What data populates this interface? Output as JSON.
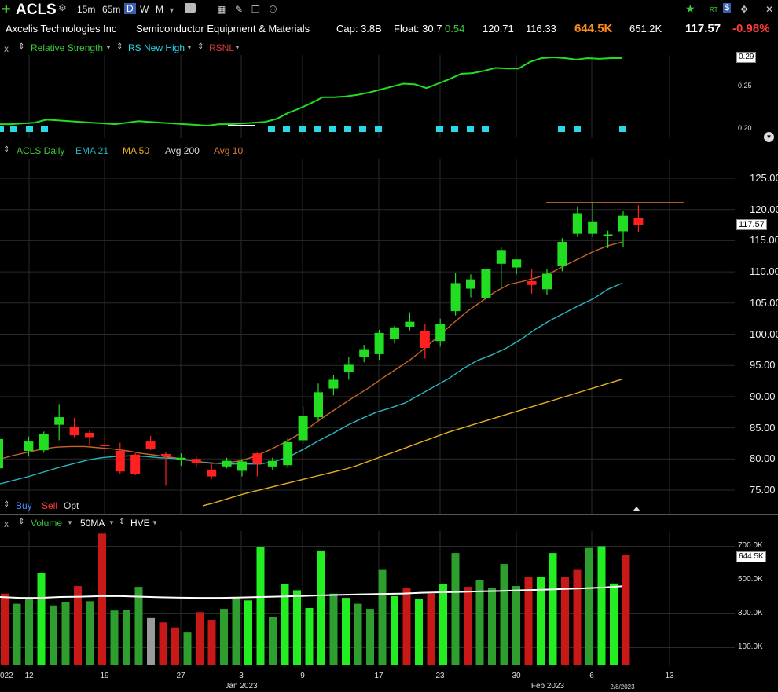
{
  "toolbar": {
    "add_icon": "plus-icon",
    "symbol": "ACLS",
    "intervals": [
      "15m",
      "65m",
      "D",
      "W",
      "M"
    ],
    "active_interval": "D",
    "right_labels": {
      "rt": "RT"
    }
  },
  "info": {
    "company": "Axcelis Technologies Inc",
    "industry": "Semiconductor Equipment & Materials",
    "cap": "Cap: 3.8B",
    "float": "Float: 30.7",
    "eps": "0.54",
    "high": "120.71",
    "low": "116.33",
    "volume": "644.5K",
    "avg_volume": "651.2K",
    "last": "117.57",
    "change": "-0.98%"
  },
  "rs_panel": {
    "close": "x",
    "legend": [
      "Relative Strength",
      "RS New High",
      "RSNL"
    ],
    "axis": [
      "0.29",
      "0.25",
      "0.20"
    ],
    "current": "0.29"
  },
  "price_panel": {
    "legend": [
      "ACLS Daily",
      "EMA 21",
      "MA 50",
      "Avg 200",
      "Avg 10"
    ],
    "axis": [
      "125.00",
      "120.00",
      "115.00",
      "110.00",
      "105.00",
      "100.00",
      "95.00",
      "90.00",
      "85.00",
      "80.00",
      "75.00"
    ],
    "last_badge": "117.57",
    "order_buttons": [
      "Buy",
      "Sell",
      "Opt"
    ]
  },
  "volume_panel": {
    "close": "x",
    "legend": [
      "Volume",
      "50MA",
      "HVE"
    ],
    "axis": [
      "700.0K",
      "500.0K",
      "300.0K",
      "100.0K"
    ],
    "badge": "644.5K"
  },
  "x_axis": {
    "ticks": [
      "022",
      "12",
      "19",
      "27",
      "3",
      "9",
      "17",
      "23",
      "30",
      "6",
      "13"
    ],
    "months": [
      "Jan 2023",
      "Feb 2023"
    ],
    "cursor_date": "2/8/2023"
  },
  "chart_data": [
    {
      "type": "line",
      "title": "Relative Strength",
      "series": [
        {
          "name": "Relative Strength",
          "values": [
            0.201,
            0.201,
            0.202,
            0.203,
            0.207,
            0.206,
            0.205,
            0.204,
            0.203,
            0.202,
            0.201,
            0.203,
            0.205,
            0.204,
            0.203,
            0.202,
            0.201,
            0.2,
            0.199,
            0.201,
            0.201,
            0.202,
            0.203,
            0.204,
            0.208,
            0.216,
            0.222,
            0.229,
            0.237,
            0.237,
            0.238,
            0.24,
            0.243,
            0.247,
            0.251,
            0.255,
            0.254,
            0.249,
            0.255,
            0.261,
            0.268,
            0.269,
            0.272,
            0.276,
            0.275,
            0.275,
            0.284,
            0.289,
            0.29,
            0.289,
            0.287,
            0.289,
            0.288,
            0.289,
            0.289
          ]
        }
      ]
    },
    {
      "type": "candlestick",
      "title": "ACLS Daily",
      "candles": [
        {
          "o": 78.5,
          "h": 83.5,
          "l": 78.0,
          "c": 83.2
        },
        {
          "o": 81.3,
          "h": 83.6,
          "l": 80.4,
          "c": 82.8
        },
        {
          "o": 81.4,
          "h": 84.4,
          "l": 81.0,
          "c": 84.0
        },
        {
          "o": 85.5,
          "h": 88.8,
          "l": 83.0,
          "c": 86.7
        },
        {
          "o": 85.2,
          "h": 86.6,
          "l": 83.5,
          "c": 83.8
        },
        {
          "o": 84.2,
          "h": 84.6,
          "l": 82.2,
          "c": 83.5
        },
        {
          "o": 82.3,
          "h": 83.8,
          "l": 81.0,
          "c": 82.2
        },
        {
          "o": 81.3,
          "h": 82.6,
          "l": 77.6,
          "c": 78.0
        },
        {
          "o": 80.7,
          "h": 80.9,
          "l": 77.4,
          "c": 77.6
        },
        {
          "o": 82.8,
          "h": 83.7,
          "l": 81.4,
          "c": 81.6
        },
        {
          "o": 80.8,
          "h": 81.1,
          "l": 75.7,
          "c": 80.6
        },
        {
          "o": 79.8,
          "h": 80.9,
          "l": 78.9,
          "c": 80.2
        },
        {
          "o": 80.0,
          "h": 80.4,
          "l": 78.8,
          "c": 79.3
        },
        {
          "o": 78.3,
          "h": 79.3,
          "l": 76.8,
          "c": 77.2
        },
        {
          "o": 78.8,
          "h": 80.2,
          "l": 78.5,
          "c": 79.7
        },
        {
          "o": 78.1,
          "h": 80.0,
          "l": 77.2,
          "c": 79.6
        },
        {
          "o": 80.9,
          "h": 81.0,
          "l": 77.2,
          "c": 79.2
        },
        {
          "o": 78.8,
          "h": 80.2,
          "l": 78.2,
          "c": 79.7
        },
        {
          "o": 79.0,
          "h": 83.3,
          "l": 78.6,
          "c": 82.7
        },
        {
          "o": 83.0,
          "h": 88.4,
          "l": 82.5,
          "c": 86.9
        },
        {
          "o": 86.7,
          "h": 92.1,
          "l": 86.2,
          "c": 90.7
        },
        {
          "o": 91.3,
          "h": 93.5,
          "l": 90.2,
          "c": 92.7
        },
        {
          "o": 93.9,
          "h": 96.3,
          "l": 92.7,
          "c": 95.1
        },
        {
          "o": 96.4,
          "h": 98.3,
          "l": 95.5,
          "c": 97.6
        },
        {
          "o": 96.8,
          "h": 100.7,
          "l": 95.9,
          "c": 100.2
        },
        {
          "o": 99.3,
          "h": 101.3,
          "l": 98.5,
          "c": 101.1
        },
        {
          "o": 101.2,
          "h": 103.5,
          "l": 100.6,
          "c": 102.0
        },
        {
          "o": 100.5,
          "h": 101.7,
          "l": 96.1,
          "c": 97.8
        },
        {
          "o": 98.9,
          "h": 102.5,
          "l": 98.0,
          "c": 101.7
        },
        {
          "o": 103.7,
          "h": 109.8,
          "l": 103.0,
          "c": 108.2
        },
        {
          "o": 107.3,
          "h": 109.6,
          "l": 105.9,
          "c": 108.8
        },
        {
          "o": 105.8,
          "h": 110.3,
          "l": 105.3,
          "c": 110.4
        },
        {
          "o": 111.3,
          "h": 113.9,
          "l": 107.5,
          "c": 113.5
        },
        {
          "o": 110.7,
          "h": 112.0,
          "l": 109.6,
          "c": 112.0
        },
        {
          "o": 108.5,
          "h": 110.5,
          "l": 106.5,
          "c": 107.9
        },
        {
          "o": 107.2,
          "h": 110.4,
          "l": 106.3,
          "c": 109.7
        },
        {
          "o": 110.9,
          "h": 115.4,
          "l": 110.1,
          "c": 114.8
        },
        {
          "o": 116.1,
          "h": 120.5,
          "l": 115.6,
          "c": 119.4
        },
        {
          "o": 116.1,
          "h": 121.2,
          "l": 115.6,
          "c": 118.1
        },
        {
          "o": 116.0,
          "h": 116.6,
          "l": 113.8,
          "c": 116.0
        },
        {
          "o": 116.5,
          "h": 119.7,
          "l": 113.9,
          "c": 119.0
        },
        {
          "o": 118.6,
          "h": 120.7,
          "l": 116.3,
          "c": 117.57
        }
      ],
      "series": [
        {
          "name": "EMA 21",
          "values": [
            76.0,
            76.6,
            77.2,
            77.9,
            78.6,
            79.2,
            79.8,
            80.2,
            80.4,
            80.5,
            80.4,
            80.2,
            80.1,
            79.8,
            79.5,
            79.3,
            79.2,
            79.2,
            79.2,
            79.6,
            80.4,
            81.6,
            82.9,
            84.1,
            85.4,
            86.5,
            87.5,
            88.2,
            89.0,
            90.3,
            91.6,
            92.9,
            94.5,
            95.8,
            96.7,
            97.8,
            99.2,
            100.8,
            102.2,
            103.4,
            104.6,
            105.7,
            107.2,
            108.2
          ]
        },
        {
          "name": "MA 50",
          "values": [
            72.5,
            72.9,
            73.4,
            73.9,
            74.4,
            74.8,
            75.2,
            75.6,
            76.0,
            76.4,
            76.8,
            77.2,
            77.6,
            78.0,
            78.4,
            78.9,
            79.5,
            80.1,
            80.7,
            81.3,
            81.9,
            82.5,
            83.1,
            83.7,
            84.3,
            84.8,
            85.3,
            85.8,
            86.3,
            86.8,
            87.3,
            87.8,
            88.3,
            88.8,
            89.3,
            89.8,
            90.3,
            90.8,
            91.3,
            91.8,
            92.3,
            92.8
          ]
        },
        {
          "name": "Avg 10",
          "values": [
            80.0,
            80.6,
            81.1,
            81.6,
            81.9,
            82.0,
            82.0,
            81.8,
            81.6,
            81.3,
            80.9,
            80.6,
            80.3,
            80.0,
            79.5,
            79.3,
            79.4,
            79.7,
            80.4,
            81.4,
            82.5,
            83.8,
            85.3,
            86.9,
            88.4,
            89.9,
            91.3,
            92.9,
            94.4,
            95.9,
            97.7,
            99.7,
            101.7,
            103.6,
            105.2,
            106.8,
            108.0,
            108.5,
            109.1,
            109.9,
            111.1,
            112.2,
            113.3,
            114.2,
            114.8
          ]
        }
      ],
      "hline": 121.1,
      "ylim": [
        73.0,
        127.0
      ]
    },
    {
      "type": "bar",
      "title": "Volume",
      "values": [
        420,
        360,
        390,
        540,
        350,
        370,
        465,
        375,
        775,
        320,
        325,
        460,
        275,
        250,
        220,
        190,
        310,
        265,
        330,
        400,
        380,
        695,
        280,
        475,
        440,
        335,
        675,
        420,
        395,
        360,
        330,
        560,
        405,
        455,
        390,
        420,
        475,
        660,
        460,
        500,
        455,
        595,
        465,
        520,
        520,
        660,
        520,
        560,
        690,
        700,
        480,
        650
      ],
      "colors": [
        "dr",
        "gr",
        "gr",
        "br",
        "gr",
        "gr",
        "dr",
        "gr",
        "dr",
        "gr",
        "gr",
        "gr",
        "dr",
        "dr",
        "dr",
        "gr",
        "dr",
        "dr",
        "gr",
        "gr",
        "br",
        "br",
        "gr",
        "br",
        "br",
        "br",
        "br",
        "gr",
        "br",
        "gr",
        "gr",
        "gr",
        "br",
        "dr",
        "br",
        "dr",
        "br",
        "gr",
        "dr",
        "gr",
        "gr",
        "gr",
        "gr",
        "dr",
        "br",
        "br",
        "dr",
        "dr",
        "gr",
        "br",
        "br",
        "dr"
      ],
      "series": [
        {
          "name": "50MA",
          "values": [
            400,
            395,
            395,
            400,
            402,
            405,
            405,
            402,
            398,
            396,
            395,
            395,
            397,
            400,
            403,
            406,
            410,
            413,
            416,
            418,
            420,
            425,
            428,
            430,
            434,
            436,
            440,
            443,
            447,
            451,
            456,
            464
          ]
        }
      ],
      "ylim": [
        0,
        800
      ]
    }
  ]
}
